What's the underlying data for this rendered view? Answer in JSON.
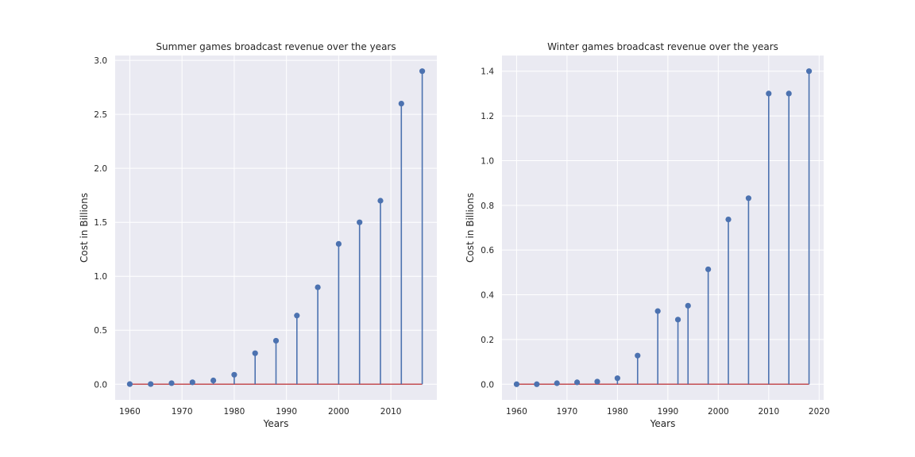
{
  "chart_data": [
    {
      "type": "stem",
      "title": "Summer games broadcast revenue over the years",
      "xlabel": "Years",
      "ylabel": "Cost in Billions",
      "x": [
        1960,
        1964,
        1968,
        1972,
        1976,
        1980,
        1984,
        1988,
        1992,
        1996,
        2000,
        2004,
        2008,
        2012,
        2016
      ],
      "y": [
        0.0012,
        0.0016,
        0.0098,
        0.0178,
        0.0349,
        0.088,
        0.287,
        0.403,
        0.636,
        0.898,
        1.3,
        1.5,
        1.7,
        2.6,
        2.9
      ],
      "xlim": [
        1957.2,
        2018.8
      ],
      "ylim": [
        -0.145,
        3.045
      ],
      "xticks": [
        1960,
        1970,
        1980,
        1990,
        2000,
        2010
      ],
      "yticks": [
        0.0,
        0.5,
        1.0,
        1.5,
        2.0,
        2.5,
        3.0
      ],
      "ytick_labels": [
        "0.0",
        "0.5",
        "1.0",
        "1.5",
        "2.0",
        "2.5",
        "3.0"
      ],
      "grid": true,
      "stem_color": "#4c72b0",
      "baseline_color": "#c44e52"
    },
    {
      "type": "stem",
      "title": "Winter games broadcast revenue over the years",
      "xlabel": "Years",
      "ylabel": "Cost in Billions",
      "x": [
        1960,
        1964,
        1968,
        1972,
        1976,
        1980,
        1984,
        1988,
        1992,
        1994,
        1998,
        2002,
        2006,
        2010,
        2014,
        2018
      ],
      "y": [
        0.0,
        0.0,
        0.0045,
        0.0085,
        0.0118,
        0.0268,
        0.128,
        0.327,
        0.289,
        0.351,
        0.514,
        0.737,
        0.832,
        1.3,
        1.3,
        1.4
      ],
      "xlim": [
        1957.1,
        2020.9
      ],
      "ylim": [
        -0.07,
        1.47
      ],
      "xticks": [
        1960,
        1970,
        1980,
        1990,
        2000,
        2010,
        2020
      ],
      "yticks": [
        0.0,
        0.2,
        0.4,
        0.6,
        0.8,
        1.0,
        1.2,
        1.4
      ],
      "ytick_labels": [
        "0.0",
        "0.2",
        "0.4",
        "0.6",
        "0.8",
        "1.0",
        "1.2",
        "1.4"
      ],
      "grid": true,
      "stem_color": "#4c72b0",
      "baseline_color": "#c44e52"
    }
  ]
}
